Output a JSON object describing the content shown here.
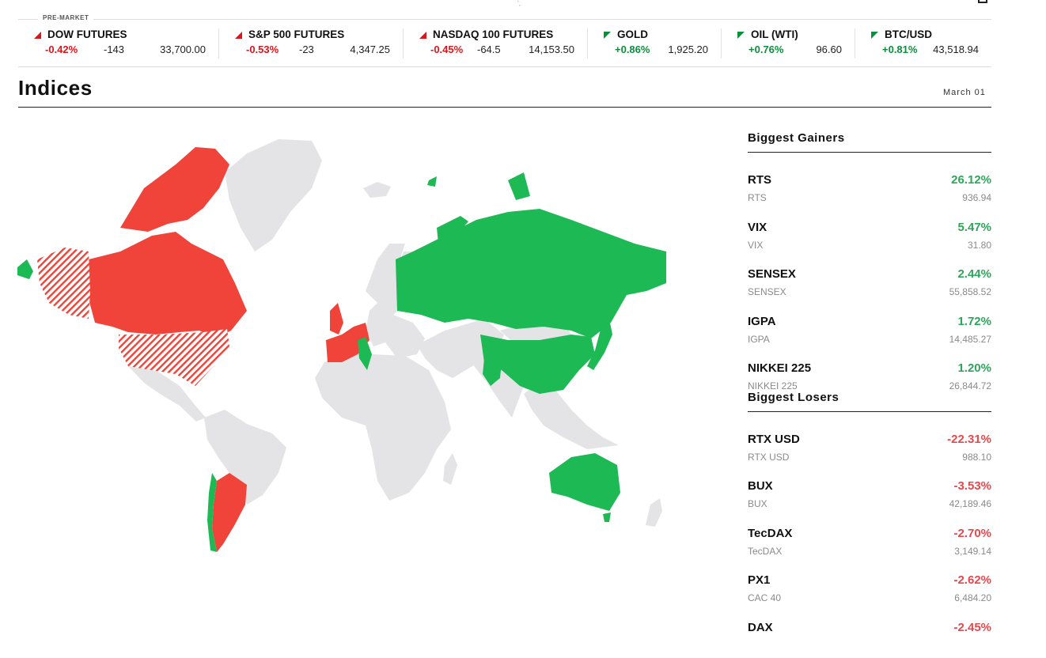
{
  "premarket_label": "PRE-MARKET",
  "ticker": [
    {
      "name": "DOW FUTURES",
      "direction": "down",
      "pct": "-0.42%",
      "change": "-143",
      "value": "33,700.00"
    },
    {
      "name": "S&P 500 FUTURES",
      "direction": "down",
      "pct": "-0.53%",
      "change": "-23",
      "value": "4,347.25"
    },
    {
      "name": "NASDAQ 100 FUTURES",
      "direction": "down",
      "pct": "-0.45%",
      "change": "-64.5",
      "value": "14,153.50"
    },
    {
      "name": "GOLD",
      "direction": "up",
      "pct": "+0.86%",
      "change": "",
      "value": "1,925.20"
    },
    {
      "name": "OIL (WTI)",
      "direction": "up",
      "pct": "+0.76%",
      "change": "",
      "value": "96.60"
    },
    {
      "name": "BTC/USD",
      "direction": "up",
      "pct": "+0.81%",
      "change": "",
      "value": "43,518.94"
    }
  ],
  "header": {
    "title": "Indices",
    "date": "March 01"
  },
  "gainers": {
    "title": "Biggest Gainers",
    "items": [
      {
        "symbol": "RTS",
        "name": "RTS",
        "pct": "26.12%",
        "value": "936.94"
      },
      {
        "symbol": "VIX",
        "name": "VIX",
        "pct": "5.47%",
        "value": "31.80"
      },
      {
        "symbol": "SENSEX",
        "name": "SENSEX",
        "pct": "2.44%",
        "value": "55,858.52"
      },
      {
        "symbol": "IGPA",
        "name": "IGPA",
        "pct": "1.72%",
        "value": "14,485.27"
      },
      {
        "symbol": "NIKKEI 225",
        "name": "NIKKEI 225",
        "pct": "1.20%",
        "value": "26,844.72"
      }
    ]
  },
  "losers": {
    "title": "Biggest Losers",
    "items": [
      {
        "symbol": "RTX USD",
        "name": "RTX USD",
        "pct": "-22.31%",
        "value": "988.10"
      },
      {
        "symbol": "BUX",
        "name": "BUX",
        "pct": "-3.53%",
        "value": "42,189.46"
      },
      {
        "symbol": "TecDAX",
        "name": "TecDAX",
        "pct": "-2.70%",
        "value": "3,149.14"
      },
      {
        "symbol": "PX1",
        "name": "CAC 40",
        "pct": "-2.62%",
        "value": "6,484.20"
      },
      {
        "symbol": "DAX",
        "name": "",
        "pct": "-2.45%",
        "value": ""
      }
    ]
  },
  "map_colors": {
    "up": "#1db954",
    "down": "#f0433a",
    "neutral": "#e4e4e6"
  }
}
